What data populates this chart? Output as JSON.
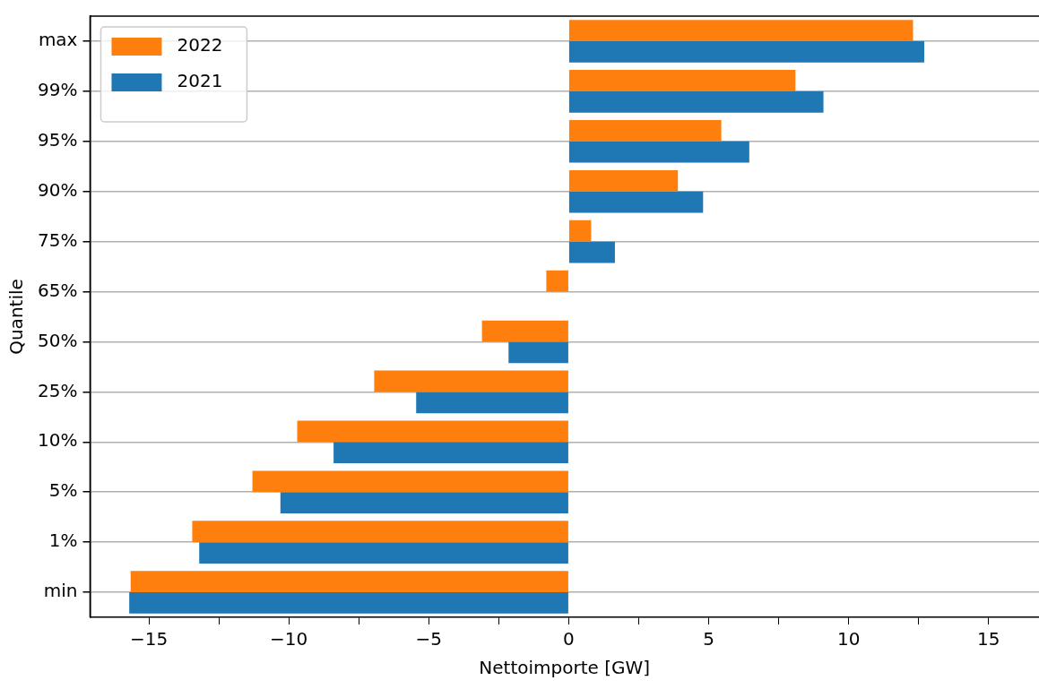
{
  "chart_data": {
    "type": "bar",
    "orientation": "horizontal",
    "xlabel": "Nettoimporte [GW]",
    "ylabel": "Quantile",
    "categories": [
      "max",
      "99%",
      "95%",
      "90%",
      "75%",
      "65%",
      "50%",
      "25%",
      "10%",
      "5%",
      "1%",
      "min"
    ],
    "series": [
      {
        "name": "2022",
        "color": "#ff7f0e",
        "values": [
          12.3,
          8.1,
          5.45,
          3.9,
          0.8,
          -0.8,
          -3.1,
          -6.95,
          -9.7,
          -11.3,
          -13.45,
          -15.65
        ]
      },
      {
        "name": "2021",
        "color": "#1f77b4",
        "values": [
          12.7,
          9.1,
          6.45,
          4.8,
          1.65,
          0,
          -2.15,
          -5.45,
          -8.4,
          -10.3,
          -13.2,
          -15.7
        ]
      }
    ],
    "xlim": [
      -17.1,
      16.8
    ],
    "xticks": [
      -15,
      {
        "value": -12.5,
        "label": null
      },
      -10,
      {
        "value": -7.5,
        "label": null
      },
      -5,
      {
        "value": -2.5,
        "label": null
      },
      0,
      {
        "value": 2.5,
        "label": null
      },
      5,
      {
        "value": 7.5,
        "label": null
      },
      10,
      {
        "value": 12.5,
        "label": null
      },
      15
    ],
    "grid": "y",
    "legend": "top left"
  }
}
